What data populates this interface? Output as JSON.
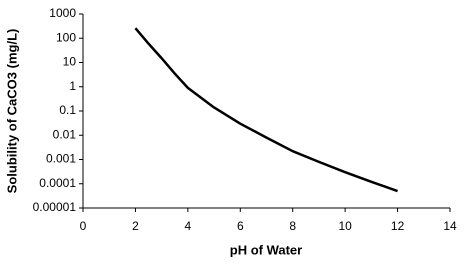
{
  "chart_data": {
    "type": "line",
    "x_label": "pH of Water",
    "y_label": "Solubility of CaCO3 (mg/L)",
    "x": [
      2,
      2.5,
      3,
      3.5,
      4,
      5,
      6,
      7,
      8,
      9,
      10,
      11,
      12
    ],
    "series": [
      {
        "color": "#000000",
        "values": [
          260,
          60,
          15,
          3.5,
          0.9,
          0.14,
          0.03,
          0.008,
          0.0022,
          0.0008,
          0.0003,
          0.00012,
          5e-05
        ]
      }
    ],
    "xlim": [
      0,
      14
    ],
    "xticks": [
      0,
      2,
      4,
      6,
      8,
      10,
      12,
      14
    ],
    "ylim": [
      1e-05,
      1000
    ],
    "yticks": [
      1e-05,
      0.0001,
      0.001,
      0.01,
      0.1,
      1,
      10,
      100,
      1000
    ],
    "y_scale": "log",
    "grid": false
  }
}
